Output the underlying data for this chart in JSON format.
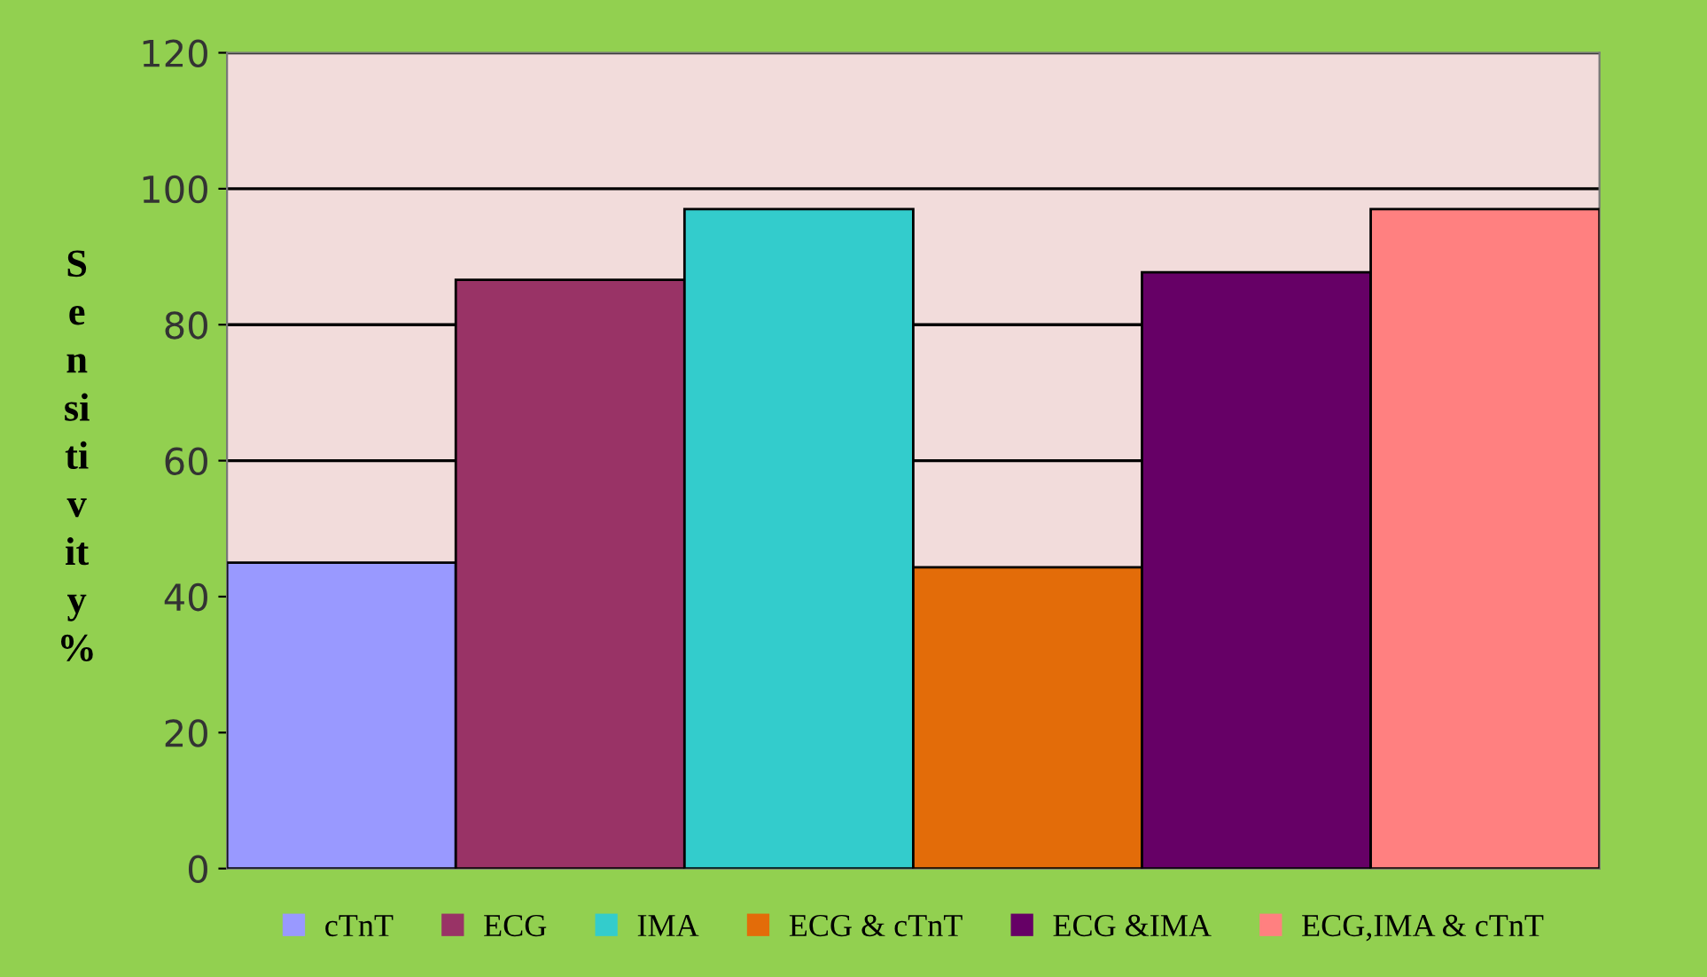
{
  "chart_data": {
    "type": "bar",
    "categories": [
      null
    ],
    "ylabel": "S\ne\nn\nsi\nti\nv\nit\ny\n%",
    "series": [
      {
        "name": "cTnT",
        "color": "#9999ff",
        "values": [
          45
        ]
      },
      {
        "name": "ECG",
        "color": "#993366",
        "values": [
          86.6
        ]
      },
      {
        "name": "IMA",
        "color": "#33cccc",
        "values": [
          97
        ]
      },
      {
        "name": "ECG & cTnT",
        "color": "#e36c09",
        "values": [
          44.3
        ]
      },
      {
        "name": "ECG &IMA",
        "color": "#660066",
        "values": [
          87.7
        ]
      },
      {
        "name": "ECG,IMA & cTnT",
        "color": "#ff8080",
        "values": [
          97
        ]
      }
    ],
    "ylim": [
      0,
      120
    ],
    "yticks": [
      0,
      20,
      40,
      60,
      80,
      100,
      120
    ],
    "grid": "y",
    "legend": "bottom"
  }
}
